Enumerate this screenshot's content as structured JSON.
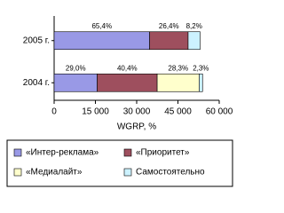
{
  "chart_data": {
    "type": "stacked-bar-horizontal",
    "categories": [
      "2005 г.",
      "2004 г."
    ],
    "series": [
      {
        "name": "«Интер-реклама»",
        "color": "#9999e6",
        "values": [
          34700,
          15650
        ],
        "share_labels": [
          "65,4%",
          "29,0%"
        ]
      },
      {
        "name": "«Приоритет»",
        "color": "#9e4f5e",
        "values": [
          14000,
          21800
        ],
        "share_labels": [
          "26,4%",
          "40,4%"
        ]
      },
      {
        "name": "«Медиалайт»",
        "color": "#ffffcc",
        "values": [
          null,
          15250
        ],
        "share_labels": [
          null,
          "28,3%"
        ]
      },
      {
        "name": "Самостоятельно",
        "color": "#ccf2ff",
        "values": [
          4350,
          1250
        ],
        "share_labels": [
          "8,2%",
          "2,3%"
        ]
      }
    ],
    "xlabel": "WGRP, %",
    "xlim": [
      0,
      60000
    ],
    "xticks": [
      0,
      {
        "value": 15000,
        "label": "15 000"
      },
      {
        "value": 30000,
        "label": "30 000"
      },
      {
        "value": 45000,
        "label": "45 000"
      },
      {
        "value": 60000,
        "label": "60 000"
      }
    ],
    "legend": "bottom"
  }
}
